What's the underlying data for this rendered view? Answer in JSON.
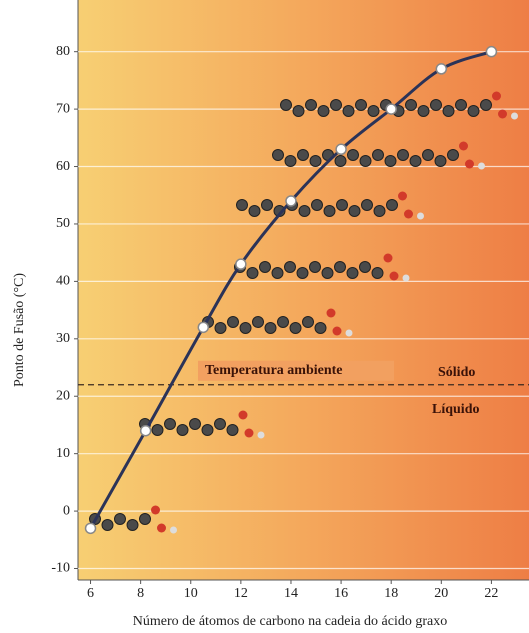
{
  "chart_data": {
    "type": "line",
    "x_label": "Número de átomos de carbono na cadeia do ácido graxo",
    "y_label": "Ponto de Fusão (°C)",
    "x": [
      6,
      8.2,
      10.5,
      12,
      14,
      16,
      18,
      20,
      22
    ],
    "series": [
      {
        "color": "#2b3358",
        "values": [
          -3,
          14,
          32,
          43,
          54,
          63,
          70,
          77,
          80
        ]
      }
    ],
    "xlim": [
      5.5,
      23.5
    ],
    "xticks": [
      6,
      8,
      10,
      12,
      14,
      16,
      18,
      20,
      22
    ],
    "ylim": [
      -12,
      89
    ],
    "yticks": [
      -10,
      0,
      10,
      20,
      30,
      40,
      50,
      60,
      70,
      80
    ],
    "grid": true,
    "reference_line": 22,
    "annotations": [
      "Temperatura ambiente",
      "Sólido",
      "Líquido"
    ]
  }
}
